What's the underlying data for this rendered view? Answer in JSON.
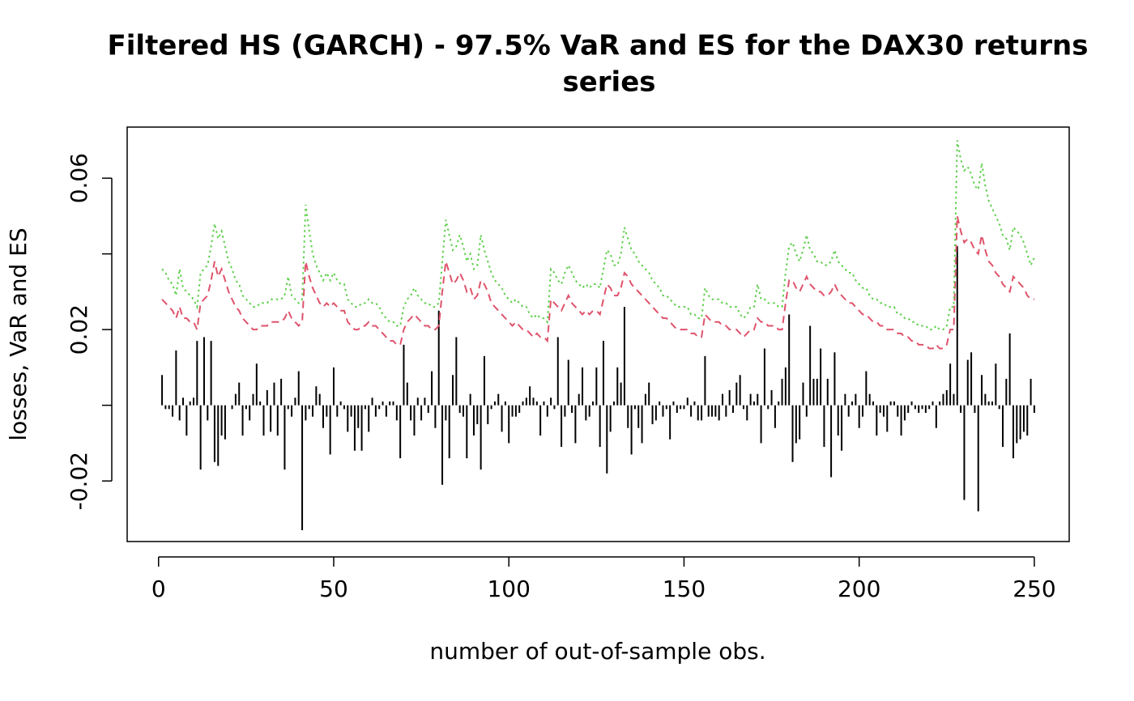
{
  "chart_data": {
    "type": "line",
    "title": [
      "Filtered HS (GARCH) - 97.5% VaR and ES for the DAX30 returns",
      "series"
    ],
    "xlabel": "number of out-of-sample obs.",
    "ylabel": "losses, VaR and ES",
    "xlim": [
      -8.96,
      259.96
    ],
    "ylim": [
      -0.036,
      0.0735
    ],
    "xticks": [
      0,
      50,
      100,
      150,
      200,
      250
    ],
    "yticks": [
      -0.02,
      {
        "value": 0,
        "label": null
      },
      0.02,
      {
        "value": 0.04,
        "label": null
      },
      0.06
    ],
    "x": [
      1,
      2,
      3,
      4,
      5,
      6,
      7,
      8,
      9,
      10,
      11,
      12,
      13,
      14,
      15,
      16,
      17,
      18,
      19,
      20,
      21,
      22,
      23,
      24,
      25,
      26,
      27,
      28,
      29,
      30,
      31,
      32,
      33,
      34,
      35,
      36,
      37,
      38,
      39,
      40,
      41,
      42,
      43,
      44,
      45,
      46,
      47,
      48,
      49,
      50,
      51,
      52,
      53,
      54,
      55,
      56,
      57,
      58,
      59,
      60,
      61,
      62,
      63,
      64,
      65,
      66,
      67,
      68,
      69,
      70,
      71,
      72,
      73,
      74,
      75,
      76,
      77,
      78,
      79,
      80,
      81,
      82,
      83,
      84,
      85,
      86,
      87,
      88,
      89,
      90,
      91,
      92,
      93,
      94,
      95,
      96,
      97,
      98,
      99,
      100,
      101,
      102,
      103,
      104,
      105,
      106,
      107,
      108,
      109,
      110,
      111,
      112,
      113,
      114,
      115,
      116,
      117,
      118,
      119,
      120,
      121,
      122,
      123,
      124,
      125,
      126,
      127,
      128,
      129,
      130,
      131,
      132,
      133,
      134,
      135,
      136,
      137,
      138,
      139,
      140,
      141,
      142,
      143,
      144,
      145,
      146,
      147,
      148,
      149,
      150,
      151,
      152,
      153,
      154,
      155,
      156,
      157,
      158,
      159,
      160,
      161,
      162,
      163,
      164,
      165,
      166,
      167,
      168,
      169,
      170,
      171,
      172,
      173,
      174,
      175,
      176,
      177,
      178,
      179,
      180,
      181,
      182,
      183,
      184,
      185,
      186,
      187,
      188,
      189,
      190,
      191,
      192,
      193,
      194,
      195,
      196,
      197,
      198,
      199,
      200,
      201,
      202,
      203,
      204,
      205,
      206,
      207,
      208,
      209,
      210,
      211,
      212,
      213,
      214,
      215,
      216,
      217,
      218,
      219,
      220,
      221,
      222,
      223,
      224,
      225,
      226,
      227,
      228,
      229,
      230,
      231,
      232,
      233,
      234,
      235,
      236,
      237,
      238,
      239,
      240,
      241,
      242,
      243,
      244,
      245,
      246,
      247,
      248,
      249,
      250
    ],
    "series": [
      {
        "style": "h",
        "color": "#000000",
        "values": [
          0.008,
          -0.001,
          -0.001,
          -0.003,
          0.0145,
          -0.004,
          0.002,
          -0.008,
          0.001,
          0.002,
          0.017,
          -0.017,
          0.018,
          -0.004,
          0.017,
          -0.015,
          -0.016,
          -0.008,
          -0.009,
          0.0,
          -0.001,
          0.003,
          0.006,
          -0.008,
          -0.001,
          -0.004,
          0.003,
          0.011,
          0.001,
          -0.008,
          0.004,
          -0.007,
          0.006,
          -0.008,
          0.007,
          -0.017,
          -0.001,
          -0.003,
          0.002,
          0.009,
          -0.033,
          -0.004,
          -0.001,
          -0.003,
          0.005,
          0.003,
          -0.006,
          -0.003,
          -0.013,
          0.01,
          -0.003,
          0.001,
          -0.001,
          -0.007,
          -0.003,
          -0.012,
          -0.006,
          -0.012,
          -0.001,
          -0.007,
          0.002,
          -0.003,
          -0.001,
          0.001,
          -0.003,
          0.001,
          0.001,
          -0.004,
          -0.014,
          0.016,
          0.006,
          -0.004,
          -0.008,
          0.002,
          -0.004,
          0.002,
          -0.002,
          0.009,
          -0.006,
          0.025,
          -0.021,
          -0.004,
          -0.014,
          0.008,
          0.018,
          -0.002,
          -0.003,
          -0.014,
          0.003,
          -0.008,
          -0.005,
          -0.017,
          0.013,
          -0.005,
          -0.001,
          0.001,
          0.003,
          -0.007,
          0.001,
          -0.01,
          -0.003,
          -0.003,
          -0.002,
          0.001,
          0.002,
          0.005,
          0.002,
          0.001,
          -0.008,
          0.001,
          -0.003,
          0.002,
          -0.001,
          0.018,
          -0.011,
          -0.003,
          0.012,
          -0.002,
          -0.01,
          0.003,
          0.01,
          -0.004,
          -0.003,
          0.001,
          0.01,
          -0.011,
          0.017,
          -0.018,
          -0.007,
          0.001,
          0.01,
          0.006,
          0.026,
          -0.006,
          -0.013,
          -0.001,
          -0.006,
          -0.01,
          0.003,
          0.006,
          -0.005,
          -0.004,
          0.001,
          -0.003,
          -0.001,
          -0.009,
          0.001,
          -0.002,
          -0.001,
          -0.001,
          0.002,
          -0.003,
          0.001,
          -0.004,
          -0.004,
          0.013,
          -0.003,
          -0.003,
          -0.003,
          -0.004,
          0.003,
          -0.003,
          0.004,
          -0.002,
          0.006,
          0.008,
          -0.001,
          -0.004,
          0.003,
          0.001,
          0.003,
          -0.01,
          0.015,
          -0.001,
          0.004,
          -0.006,
          0.001,
          0.007,
          0.01,
          0.024,
          -0.015,
          -0.01,
          -0.009,
          0.006,
          -0.003,
          0.021,
          0.007,
          0.007,
          0.015,
          -0.011,
          0.007,
          -0.019,
          0.014,
          -0.008,
          -0.012,
          0.003,
          -0.003,
          0.001,
          0.003,
          -0.006,
          -0.003,
          0.009,
          0.003,
          0.001,
          -0.008,
          -0.002,
          -0.003,
          -0.007,
          0.001,
          0.001,
          -0.003,
          -0.008,
          -0.004,
          -0.002,
          0.001,
          -0.001,
          -0.002,
          -0.001,
          -0.002,
          -0.001,
          0.001,
          -0.006,
          0.001,
          0.003,
          0.004,
          0.011,
          0.003,
          0.042,
          -0.002,
          -0.025,
          0.012,
          0.014,
          -0.002,
          -0.028,
          0.008,
          0.003,
          0.001,
          0.001,
          0.011,
          -0.001,
          -0.011,
          0.007,
          0.019,
          -0.014,
          -0.01,
          -0.009,
          -0.007,
          -0.008,
          0.007,
          -0.002
        ]
      },
      {
        "style": "dashed",
        "color": "#DF536B",
        "values": [
          0.028,
          0.027,
          0.026,
          0.025,
          0.023,
          0.026,
          0.023,
          0.023,
          0.022,
          0.022,
          0.02,
          0.027,
          0.028,
          0.029,
          0.033,
          0.038,
          0.034,
          0.036,
          0.033,
          0.03,
          0.028,
          0.026,
          0.025,
          0.023,
          0.022,
          0.021,
          0.02,
          0.02,
          0.021,
          0.021,
          0.021,
          0.022,
          0.022,
          0.022,
          0.022,
          0.023,
          0.025,
          0.023,
          0.022,
          0.021,
          0.022,
          0.038,
          0.034,
          0.031,
          0.029,
          0.027,
          0.026,
          0.027,
          0.026,
          0.027,
          0.026,
          0.025,
          0.025,
          0.022,
          0.021,
          0.02,
          0.02,
          0.021,
          0.021,
          0.022,
          0.021,
          0.021,
          0.02,
          0.019,
          0.018,
          0.017,
          0.017,
          0.016,
          0.016,
          0.02,
          0.022,
          0.023,
          0.024,
          0.023,
          0.022,
          0.021,
          0.021,
          0.02,
          0.02,
          0.021,
          0.03,
          0.038,
          0.035,
          0.032,
          0.033,
          0.035,
          0.033,
          0.03,
          0.031,
          0.028,
          0.029,
          0.033,
          0.032,
          0.03,
          0.027,
          0.026,
          0.025,
          0.024,
          0.023,
          0.022,
          0.021,
          0.022,
          0.021,
          0.02,
          0.02,
          0.019,
          0.018,
          0.019,
          0.018,
          0.018,
          0.017,
          0.028,
          0.027,
          0.026,
          0.025,
          0.027,
          0.029,
          0.027,
          0.026,
          0.025,
          0.024,
          0.025,
          0.024,
          0.025,
          0.025,
          0.024,
          0.028,
          0.032,
          0.031,
          0.029,
          0.029,
          0.031,
          0.035,
          0.034,
          0.032,
          0.031,
          0.03,
          0.029,
          0.028,
          0.027,
          0.026,
          0.025,
          0.024,
          0.023,
          0.023,
          0.022,
          0.021,
          0.02,
          0.02,
          0.02,
          0.02,
          0.019,
          0.019,
          0.018,
          0.018,
          0.024,
          0.023,
          0.022,
          0.022,
          0.022,
          0.021,
          0.021,
          0.02,
          0.02,
          0.02,
          0.019,
          0.018,
          0.019,
          0.02,
          0.02,
          0.023,
          0.022,
          0.022,
          0.021,
          0.021,
          0.021,
          0.02,
          0.02,
          0.027,
          0.033,
          0.033,
          0.031,
          0.03,
          0.032,
          0.034,
          0.032,
          0.031,
          0.03,
          0.03,
          0.029,
          0.029,
          0.03,
          0.032,
          0.03,
          0.029,
          0.028,
          0.027,
          0.027,
          0.026,
          0.025,
          0.024,
          0.024,
          0.023,
          0.022,
          0.022,
          0.021,
          0.021,
          0.02,
          0.02,
          0.02,
          0.019,
          0.019,
          0.018,
          0.018,
          0.017,
          0.017,
          0.016,
          0.016,
          0.016,
          0.015,
          0.015,
          0.016,
          0.015,
          0.015,
          0.016,
          0.02,
          0.02,
          0.05,
          0.046,
          0.043,
          0.044,
          0.043,
          0.041,
          0.04,
          0.045,
          0.041,
          0.038,
          0.037,
          0.035,
          0.034,
          0.032,
          0.031,
          0.03,
          0.034,
          0.033,
          0.032,
          0.031,
          0.029,
          0.028,
          0.028
        ]
      },
      {
        "style": "dotted",
        "color": "#61D04F",
        "values": [
          0.036,
          0.035,
          0.033,
          0.032,
          0.029,
          0.036,
          0.031,
          0.03,
          0.029,
          0.028,
          0.026,
          0.035,
          0.036,
          0.037,
          0.042,
          0.048,
          0.044,
          0.046,
          0.042,
          0.038,
          0.036,
          0.033,
          0.032,
          0.029,
          0.028,
          0.027,
          0.026,
          0.026,
          0.027,
          0.027,
          0.027,
          0.028,
          0.028,
          0.028,
          0.028,
          0.029,
          0.034,
          0.029,
          0.028,
          0.027,
          0.028,
          0.053,
          0.046,
          0.04,
          0.037,
          0.035,
          0.033,
          0.035,
          0.033,
          0.035,
          0.033,
          0.032,
          0.032,
          0.028,
          0.027,
          0.026,
          0.026,
          0.027,
          0.027,
          0.028,
          0.027,
          0.027,
          0.026,
          0.024,
          0.023,
          0.022,
          0.022,
          0.021,
          0.021,
          0.026,
          0.028,
          0.029,
          0.031,
          0.029,
          0.028,
          0.027,
          0.027,
          0.026,
          0.026,
          0.027,
          0.038,
          0.049,
          0.045,
          0.041,
          0.042,
          0.045,
          0.042,
          0.038,
          0.04,
          0.036,
          0.037,
          0.045,
          0.041,
          0.038,
          0.035,
          0.033,
          0.032,
          0.031,
          0.029,
          0.028,
          0.027,
          0.028,
          0.027,
          0.026,
          0.026,
          0.024,
          0.023,
          0.024,
          0.023,
          0.023,
          0.022,
          0.036,
          0.035,
          0.033,
          0.032,
          0.035,
          0.037,
          0.035,
          0.033,
          0.032,
          0.031,
          0.032,
          0.031,
          0.032,
          0.032,
          0.031,
          0.036,
          0.041,
          0.04,
          0.037,
          0.037,
          0.04,
          0.047,
          0.044,
          0.041,
          0.04,
          0.038,
          0.037,
          0.036,
          0.035,
          0.033,
          0.032,
          0.031,
          0.029,
          0.029,
          0.028,
          0.027,
          0.026,
          0.026,
          0.026,
          0.026,
          0.024,
          0.024,
          0.023,
          0.023,
          0.031,
          0.029,
          0.028,
          0.028,
          0.028,
          0.027,
          0.027,
          0.026,
          0.026,
          0.026,
          0.024,
          0.023,
          0.024,
          0.026,
          0.026,
          0.032,
          0.028,
          0.028,
          0.027,
          0.027,
          0.027,
          0.026,
          0.026,
          0.035,
          0.042,
          0.043,
          0.04,
          0.038,
          0.041,
          0.045,
          0.041,
          0.04,
          0.038,
          0.038,
          0.037,
          0.037,
          0.038,
          0.041,
          0.038,
          0.037,
          0.036,
          0.035,
          0.035,
          0.033,
          0.032,
          0.031,
          0.031,
          0.029,
          0.028,
          0.028,
          0.027,
          0.027,
          0.026,
          0.026,
          0.026,
          0.024,
          0.024,
          0.023,
          0.023,
          0.022,
          0.022,
          0.021,
          0.021,
          0.021,
          0.02,
          0.02,
          0.021,
          0.02,
          0.02,
          0.021,
          0.026,
          0.026,
          0.07,
          0.065,
          0.062,
          0.063,
          0.061,
          0.058,
          0.057,
          0.064,
          0.058,
          0.054,
          0.052,
          0.05,
          0.048,
          0.045,
          0.044,
          0.041,
          0.047,
          0.046,
          0.045,
          0.043,
          0.04,
          0.037,
          0.039
        ]
      }
    ]
  }
}
